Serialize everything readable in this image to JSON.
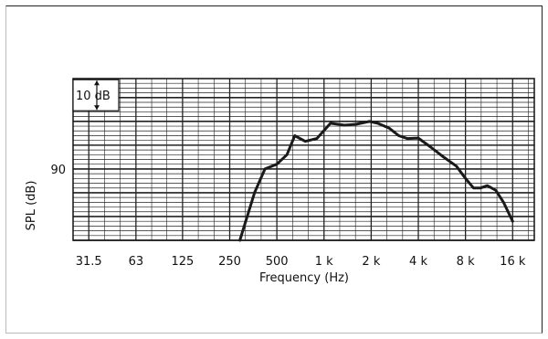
{
  "chart_data": {
    "type": "line",
    "xlabel": "Frequency (Hz)",
    "ylabel": "SPL (dB)",
    "x_scale": "log",
    "xlim": [
      25,
      22000
    ],
    "ylim": [
      75,
      109
    ],
    "x_ticks": [
      {
        "value": 31.5,
        "label": "31.5"
      },
      {
        "value": 63,
        "label": "63"
      },
      {
        "value": 125,
        "label": "125"
      },
      {
        "value": 250,
        "label": "250"
      },
      {
        "value": 500,
        "label": "500"
      },
      {
        "value": 1000,
        "label": "1 k"
      },
      {
        "value": 2000,
        "label": "2 k"
      },
      {
        "value": 4000,
        "label": "4 k"
      },
      {
        "value": 8000,
        "label": "8 k"
      },
      {
        "value": 16000,
        "label": "16 k"
      }
    ],
    "y_ticks": [
      {
        "value": 90,
        "label": "90"
      }
    ],
    "scale_marker_label": "10 dB",
    "grid": true,
    "series": [
      {
        "color": "#1a1a1a",
        "x": [
          290,
          360,
          420,
          500,
          580,
          650,
          760,
          900,
          1100,
          1350,
          1600,
          1950,
          2200,
          2600,
          3000,
          3400,
          4000,
          4800,
          5800,
          7000,
          8000,
          9000,
          10000,
          11000,
          12500,
          14000,
          16000
        ],
        "y": [
          75,
          85,
          90,
          91,
          93,
          97,
          95.8,
          96.4,
          99.6,
          99.2,
          99.4,
          100,
          99.6,
          98.6,
          97,
          96.4,
          96.5,
          94.6,
          92.5,
          90.6,
          88,
          86,
          86,
          86.5,
          85.5,
          83,
          79
        ]
      }
    ]
  }
}
